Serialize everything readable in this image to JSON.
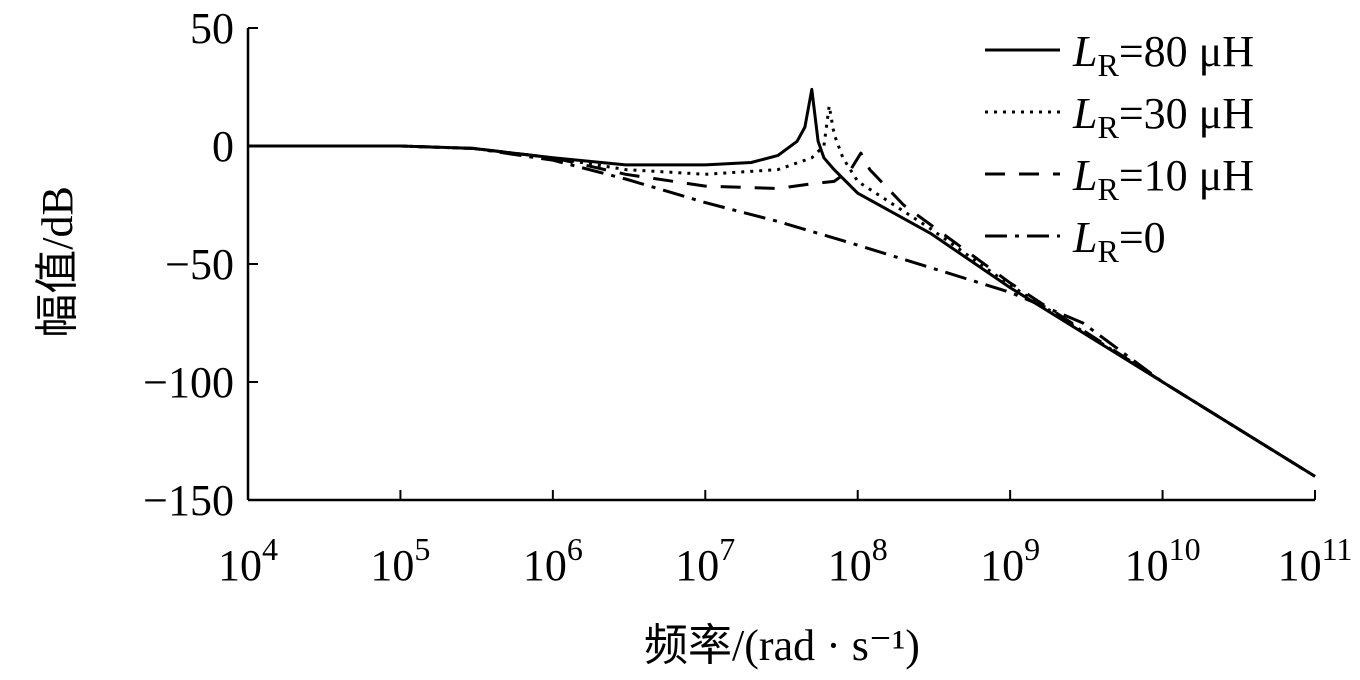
{
  "chart_data": {
    "type": "line",
    "xlabel": "频率/(rad · s⁻¹)",
    "ylabel": "幅值/dB",
    "xscale": "log",
    "xlim": [
      10000,
      100000000000
    ],
    "ylim": [
      -150,
      50
    ],
    "x_ticks": [
      {
        "value": 10000,
        "base": "10",
        "exp": "4"
      },
      {
        "value": 100000,
        "base": "10",
        "exp": "5"
      },
      {
        "value": 1000000,
        "base": "10",
        "exp": "6"
      },
      {
        "value": 10000000,
        "base": "10",
        "exp": "7"
      },
      {
        "value": 100000000,
        "base": "10",
        "exp": "8"
      },
      {
        "value": 1000000000,
        "base": "10",
        "exp": "9"
      },
      {
        "value": 10000000000,
        "base": "10",
        "exp": "10"
      },
      {
        "value": 100000000000,
        "base": "10",
        "exp": "11"
      }
    ],
    "y_ticks": [
      {
        "value": 50,
        "label": "50"
      },
      {
        "value": 0,
        "label": "0"
      },
      {
        "value": -50,
        "label": "−50"
      },
      {
        "value": -100,
        "label": "−100"
      },
      {
        "value": -150,
        "label": "−150"
      }
    ],
    "grid": false,
    "legend_position": "top-right",
    "series": [
      {
        "name": "LR=80 μH",
        "name_parts": {
          "italic": "L",
          "sub": "R",
          "rest": "=80 μH"
        },
        "style": "solid",
        "x": [
          10000,
          100000,
          300000,
          1000000,
          3000000,
          10000000,
          20000000,
          30000000,
          40000000,
          45000000,
          50000000,
          55000000,
          60000000,
          70000000,
          100000000,
          300000000,
          1000000000,
          10000000000,
          100000000000
        ],
        "y": [
          0,
          0,
          -1,
          -5,
          -8,
          -8,
          -7,
          -4,
          2,
          8,
          24,
          2,
          -5,
          -10,
          -20,
          -37,
          -60,
          -100,
          -140
        ]
      },
      {
        "name": "LR=30 μH",
        "name_parts": {
          "italic": "L",
          "sub": "R",
          "rest": "=30 μH"
        },
        "style": "dotted",
        "x": [
          10000,
          100000,
          300000,
          1000000,
          3000000,
          10000000,
          30000000,
          50000000,
          60000000,
          65000000,
          70000000,
          80000000,
          100000000,
          300000000,
          1000000000,
          10000000000,
          100000000000
        ],
        "y": [
          0,
          0,
          -1,
          -5,
          -10,
          -12,
          -10,
          -5,
          0,
          17,
          5,
          -5,
          -15,
          -35,
          -59,
          -100,
          -140
        ]
      },
      {
        "name": "LR=10 μH",
        "name_parts": {
          "italic": "L",
          "sub": "R",
          "rest": "=10 μH"
        },
        "style": "dashed",
        "x": [
          10000,
          100000,
          300000,
          1000000,
          3000000,
          10000000,
          30000000,
          50000000,
          70000000,
          90000000,
          105000000,
          120000000,
          200000000,
          1000000000,
          10000000000,
          100000000000
        ],
        "y": [
          0,
          0,
          -1,
          -5,
          -12,
          -17,
          -18,
          -16,
          -15,
          -10,
          -3,
          -10,
          -25,
          -58,
          -100,
          -140
        ]
      },
      {
        "name": "LR=0",
        "name_parts": {
          "italic": "L",
          "sub": "R",
          "rest": "=0"
        },
        "style": "dashdot",
        "x": [
          10000,
          100000,
          300000,
          1000000,
          3000000,
          10000000,
          30000000,
          100000000,
          1000000000,
          3000000000,
          10000000000,
          100000000000
        ],
        "y": [
          0,
          0,
          -1,
          -6,
          -14,
          -24,
          -32,
          -42,
          -62,
          -75,
          -100,
          -140
        ]
      }
    ]
  }
}
